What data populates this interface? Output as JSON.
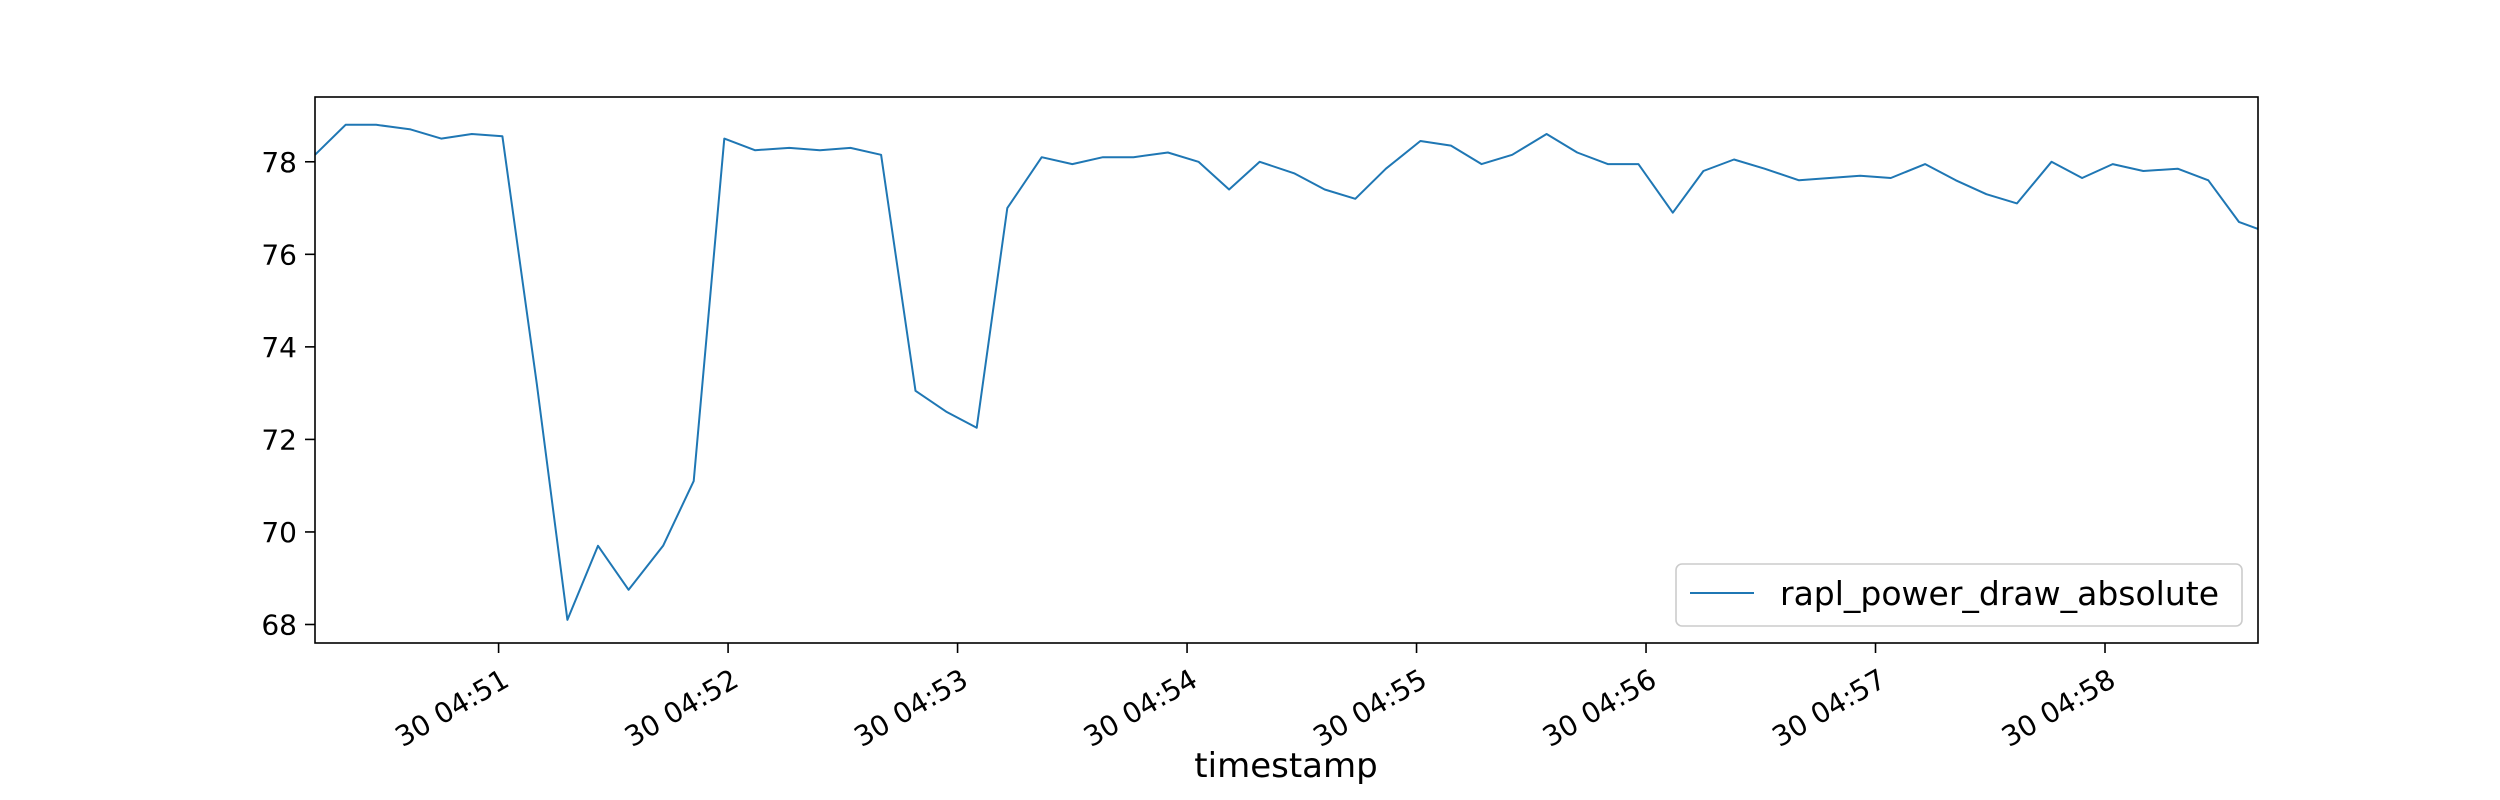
{
  "chart_data": {
    "type": "line",
    "title": "",
    "xlabel": "timestamp",
    "ylabel": "",
    "x_tick_labels": [
      "30 04:51",
      "30 04:52",
      "30 04:53",
      "30 04:54",
      "30 04:55",
      "30 04:56",
      "30 04:57",
      "30 04:58"
    ],
    "y_tick_labels": [
      "68",
      "70",
      "72",
      "74",
      "76",
      "78"
    ],
    "ylim": [
      67.6,
      79.4
    ],
    "xlim": [
      "30 04:50:12",
      "30 04:58:40"
    ],
    "grid": false,
    "legend_position": "lower right",
    "series": [
      {
        "name": "rapl_power_draw_absolute",
        "color": "#1f77b4",
        "x": [
          "30 04:50:12",
          "30 04:50:20",
          "30 04:50:28",
          "30 04:50:37",
          "30 04:50:45",
          "30 04:50:53",
          "30 04:51:01",
          "30 04:51:10",
          "30 04:51:18",
          "30 04:51:26",
          "30 04:51:34",
          "30 04:51:43",
          "30 04:51:51",
          "30 04:51:59",
          "30 04:52:07",
          "30 04:52:16",
          "30 04:52:24",
          "30 04:52:32",
          "30 04:52:40",
          "30 04:52:49",
          "30 04:52:57",
          "30 04:53:05",
          "30 04:53:13",
          "30 04:53:22",
          "30 04:53:30",
          "30 04:53:38",
          "30 04:53:46",
          "30 04:53:55",
          "30 04:54:03",
          "30 04:54:11",
          "30 04:54:19",
          "30 04:54:28",
          "30 04:54:36",
          "30 04:54:44",
          "30 04:54:52",
          "30 04:55:01",
          "30 04:55:09",
          "30 04:55:17",
          "30 04:55:25",
          "30 04:55:34",
          "30 04:55:42",
          "30 04:55:50",
          "30 04:55:58",
          "30 04:56:07",
          "30 04:56:15",
          "30 04:56:23",
          "30 04:56:31",
          "30 04:56:40",
          "30 04:56:48",
          "30 04:56:56",
          "30 04:57:04",
          "30 04:57:13",
          "30 04:57:21",
          "30 04:57:29",
          "30 04:57:37",
          "30 04:57:46",
          "30 04:57:54",
          "30 04:58:02",
          "30 04:58:10",
          "30 04:58:19",
          "30 04:58:27",
          "30 04:58:35",
          "30 04:58:40"
        ],
        "y": [
          78.15,
          78.8,
          78.8,
          78.7,
          78.5,
          78.6,
          78.55,
          73.2,
          68.1,
          69.7,
          68.75,
          69.7,
          71.1,
          78.5,
          78.25,
          78.3,
          78.25,
          78.3,
          78.15,
          73.05,
          72.6,
          72.25,
          77.0,
          78.1,
          77.95,
          78.1,
          78.1,
          78.2,
          78.0,
          77.4,
          78.0,
          77.75,
          77.4,
          77.2,
          77.85,
          78.45,
          78.35,
          77.95,
          78.15,
          78.6,
          78.2,
          77.95,
          77.95,
          76.9,
          77.8,
          78.05,
          77.85,
          77.6,
          77.65,
          77.7,
          77.65,
          77.95,
          77.6,
          77.3,
          77.1,
          78.0,
          77.65,
          77.95,
          77.8,
          77.85,
          77.6,
          76.7,
          76.55
        ]
      }
    ]
  }
}
